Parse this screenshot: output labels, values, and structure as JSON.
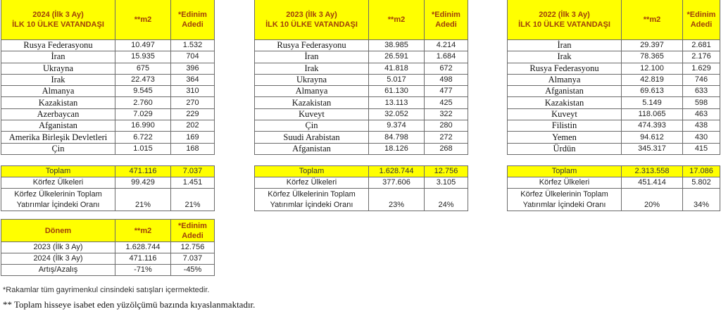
{
  "header_labels": {
    "m2": "**m2",
    "edinim_line1": "*Edinim",
    "edinim_line2": "Adedi"
  },
  "colors": {
    "header_bg": "#ffff00",
    "header_text": "#a0400a"
  },
  "tables": [
    {
      "title_line1": "2024 (İlk 3 Ay)",
      "title_line2": "İLK 10 ÜLKE VATANDAŞI",
      "rows": [
        [
          "Rusya Federasyonu",
          "10.497",
          "1.532"
        ],
        [
          "İran",
          "15.935",
          "704"
        ],
        [
          "Ukrayna",
          "675",
          "396"
        ],
        [
          "Irak",
          "22.473",
          "364"
        ],
        [
          "Almanya",
          "9.545",
          "310"
        ],
        [
          "Kazakistan",
          "2.760",
          "270"
        ],
        [
          "Azerbaycan",
          "7.029",
          "229"
        ],
        [
          "Afganistan",
          "16.990",
          "202"
        ],
        [
          "Amerika Birleşik Devletleri",
          "6.722",
          "169"
        ],
        [
          "Çin",
          "1.015",
          "168"
        ]
      ],
      "summary": {
        "toplam_label": "Toplam",
        "toplam_m2": "471.116",
        "toplam_adet": "7.037",
        "korfez_label": "Körfez Ülkeleri",
        "korfez_m2": "99.429",
        "korfez_adet": "1.451",
        "oran_label_line1": "Körfez Ülkelerinin Toplam",
        "oran_label_line2": "Yatırımlar İçindeki Oranı",
        "oran_m2": "21%",
        "oran_adet": "21%"
      }
    },
    {
      "title_line1": "2023 (İlk 3 Ay)",
      "title_line2": "İLK 10 ÜLKE VATANDAŞI",
      "rows": [
        [
          "Rusya Federasyonu",
          "38.985",
          "4.214"
        ],
        [
          "İran",
          "26.591",
          "1.684"
        ],
        [
          "Irak",
          "41.818",
          "672"
        ],
        [
          "Ukrayna",
          "5.017",
          "498"
        ],
        [
          "Almanya",
          "61.130",
          "477"
        ],
        [
          "Kazakistan",
          "13.113",
          "425"
        ],
        [
          "Kuveyt",
          "32.052",
          "322"
        ],
        [
          "Çin",
          "9.374",
          "280"
        ],
        [
          "Suudi Arabistan",
          "84.798",
          "272"
        ],
        [
          "Afganistan",
          "18.126",
          "268"
        ]
      ],
      "summary": {
        "toplam_label": "Toplam",
        "toplam_m2": "1.628.744",
        "toplam_adet": "12.756",
        "korfez_label": "Körfez Ülkeleri",
        "korfez_m2": "377.606",
        "korfez_adet": "3.105",
        "oran_label_line1": "Körfez Ülkelerinin Toplam",
        "oran_label_line2": "Yatırımlar İçindeki Oranı",
        "oran_m2": "23%",
        "oran_adet": "24%"
      }
    },
    {
      "title_line1": "2022 (İlk 3 Ay)",
      "title_line2": "İLK 10 ÜLKE VATANDAŞI",
      "rows": [
        [
          "İran",
          "29.397",
          "2.681"
        ],
        [
          "Irak",
          "78.365",
          "2.176"
        ],
        [
          "Rusya Federasyonu",
          "12.100",
          "1.629"
        ],
        [
          "Almanya",
          "42.819",
          "746"
        ],
        [
          "Afganistan",
          "69.613",
          "633"
        ],
        [
          "Kazakistan",
          "5.149",
          "598"
        ],
        [
          "Kuveyt",
          "118.065",
          "463"
        ],
        [
          "Filistin",
          "474.393",
          "438"
        ],
        [
          "Yemen",
          "94.612",
          "430"
        ],
        [
          "Ürdün",
          "345.317",
          "415"
        ]
      ],
      "summary": {
        "toplam_label": "Toplam",
        "toplam_m2": "2.313.558",
        "toplam_adet": "17.086",
        "korfez_label": "Körfez Ülkeleri",
        "korfez_m2": "451.414",
        "korfez_adet": "5.802",
        "oran_label_line1": "Körfez Ülkelerinin Toplam",
        "oran_label_line2": "Yatırımlar İçindeki Oranı",
        "oran_m2": "20%",
        "oran_adet": "34%"
      }
    }
  ],
  "comparison": {
    "header": "Dönem",
    "rows": [
      [
        "2023 (İlk 3 Ay)",
        "1.628.744",
        "12.756"
      ],
      [
        "2024 (İlk 3 Ay)",
        "471.116",
        "7.037"
      ],
      [
        "Artış/Azalış",
        "-71%",
        "-45%"
      ]
    ]
  },
  "footnotes": [
    "*Rakamlar tüm gayrimenkul cinsindeki satışları  içermektedir.",
    "** Toplam hisseye isabet eden yüzölçümü bazında kıyaslanmaktadır."
  ]
}
